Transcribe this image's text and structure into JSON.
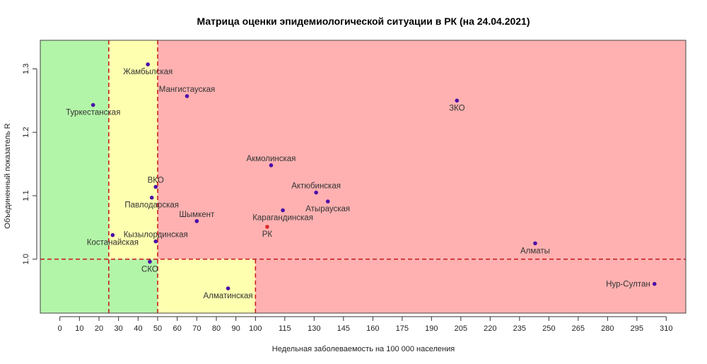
{
  "chart_data": {
    "type": "scatter",
    "title": "Матрица оценки эпидемиологической ситуации в РК (на 24.04.2021)",
    "xlabel": "Недельная заболеваемость на 100 000 населения",
    "ylabel": "Объединенный показатель R",
    "xlim": [
      -10,
      320
    ],
    "ylim": [
      0.915,
      1.345
    ],
    "x_ticks": [
      0,
      10,
      20,
      30,
      40,
      50,
      60,
      70,
      80,
      90,
      100,
      115,
      130,
      145,
      160,
      175,
      190,
      205,
      220,
      235,
      250,
      265,
      280,
      295,
      310
    ],
    "y_ticks": [
      1.0,
      1.1,
      1.2,
      1.3
    ],
    "thresholds": {
      "x": [
        25,
        50,
        100
      ],
      "y": 1.0
    },
    "zones": [
      {
        "x0": -10,
        "x1": 25,
        "y0": 0.915,
        "y1": 1.345,
        "color": "#b3f5a8"
      },
      {
        "x0": 25,
        "x1": 50,
        "y0": 1.0,
        "y1": 1.345,
        "color": "#ffffb0"
      },
      {
        "x0": 50,
        "x1": 320,
        "y0": 1.0,
        "y1": 1.345,
        "color": "#ffb1b1"
      },
      {
        "x0": 25,
        "x1": 50,
        "y0": 0.915,
        "y1": 1.0,
        "color": "#b3f5a8"
      },
      {
        "x0": 50,
        "x1": 100,
        "y0": 0.915,
        "y1": 1.0,
        "color": "#ffffb0"
      },
      {
        "x0": 100,
        "x1": 320,
        "y0": 0.915,
        "y1": 1.0,
        "color": "#ffb1b1"
      }
    ],
    "colors": {
      "point": "#4b0fa8",
      "point_rk": "#d92b2b",
      "label": "#333333",
      "label_rk": "#d92b2b",
      "threshold": "#c62020"
    },
    "points": [
      {
        "name": "Жамбылская",
        "x": 45,
        "y": 1.307,
        "label_pos": "below"
      },
      {
        "name": "Мангистауская",
        "x": 65,
        "y": 1.257,
        "label_pos": "above"
      },
      {
        "name": "Туркестанская",
        "x": 17,
        "y": 1.243,
        "label_pos": "below"
      },
      {
        "name": "ЗКО",
        "x": 203,
        "y": 1.25,
        "label_pos": "below"
      },
      {
        "name": "Акмолинская",
        "x": 108,
        "y": 1.148,
        "label_pos": "above"
      },
      {
        "name": "ВКО",
        "x": 49,
        "y": 1.114,
        "label_pos": "above"
      },
      {
        "name": "Павлодарская",
        "x": 47,
        "y": 1.097,
        "label_pos": "below"
      },
      {
        "name": "Актюбинская",
        "x": 131,
        "y": 1.105,
        "label_pos": "above"
      },
      {
        "name": "Атырауская",
        "x": 137,
        "y": 1.091,
        "label_pos": "below"
      },
      {
        "name": "Шымкент",
        "x": 70,
        "y": 1.06,
        "label_pos": "above"
      },
      {
        "name": "Карагандинская",
        "x": 114,
        "y": 1.077,
        "label_pos": "below"
      },
      {
        "name": "РК",
        "x": 106,
        "y": 1.051,
        "label_pos": "below",
        "highlight": true
      },
      {
        "name": "Кызылординская",
        "x": 49,
        "y": 1.028,
        "label_pos": "above"
      },
      {
        "name": "Костанайская",
        "x": 27,
        "y": 1.038,
        "label_pos": "below"
      },
      {
        "name": "Алматы",
        "x": 243,
        "y": 1.025,
        "label_pos": "below"
      },
      {
        "name": "СКО",
        "x": 46,
        "y": 0.996,
        "label_pos": "below"
      },
      {
        "name": "Алматинская",
        "x": 86,
        "y": 0.954,
        "label_pos": "below"
      },
      {
        "name": "Нур-Султан",
        "x": 304,
        "y": 0.961,
        "label_pos": "left"
      }
    ]
  }
}
